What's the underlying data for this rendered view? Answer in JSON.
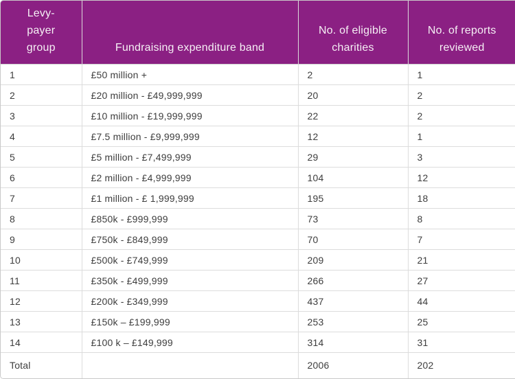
{
  "chart_data": {
    "type": "table",
    "columns": [
      {
        "key": "group",
        "label": "Levy-payer group"
      },
      {
        "key": "band",
        "label": "Fundraising expenditure band"
      },
      {
        "key": "charities",
        "label": "No. of eligible charities"
      },
      {
        "key": "reports",
        "label": "No. of reports reviewed"
      }
    ],
    "rows": [
      [
        "1",
        "£50 million +",
        "2",
        "1"
      ],
      [
        "2",
        "£20 million - £49,999,999",
        "20",
        "2"
      ],
      [
        "3",
        "£10 million - £19,999,999",
        "22",
        "2"
      ],
      [
        "4",
        "£7.5 million - £9,999,999",
        "12",
        "1"
      ],
      [
        "5",
        "£5 million - £7,499,999",
        "29",
        "3"
      ],
      [
        "6",
        "£2 million - £4,999,999",
        "104",
        "12"
      ],
      [
        "7",
        "£1 million - £ 1,999,999",
        "195",
        "18"
      ],
      [
        "8",
        "£850k - £999,999",
        "73",
        "8"
      ],
      [
        "9",
        "£750k - £849,999",
        "70",
        "7"
      ],
      [
        "10",
        "£500k - £749,999",
        "209",
        "21"
      ],
      [
        "11",
        "£350k - £499,999",
        "266",
        "27"
      ],
      [
        "12",
        "£200k - £349,999",
        "437",
        "44"
      ],
      [
        "13",
        "£150k – £199,999",
        "253",
        "25"
      ],
      [
        "14",
        "£100 k – £149,999",
        "314",
        "31"
      ]
    ],
    "total_row": [
      "Total",
      "",
      "2006",
      "202"
    ]
  },
  "colors": {
    "header_background": "#8B2083",
    "header_text": "#F6F0F5",
    "body_text": "#3D3D3D",
    "grid_line": "#DCDCDC",
    "outer_border": "#C9C9C9"
  }
}
